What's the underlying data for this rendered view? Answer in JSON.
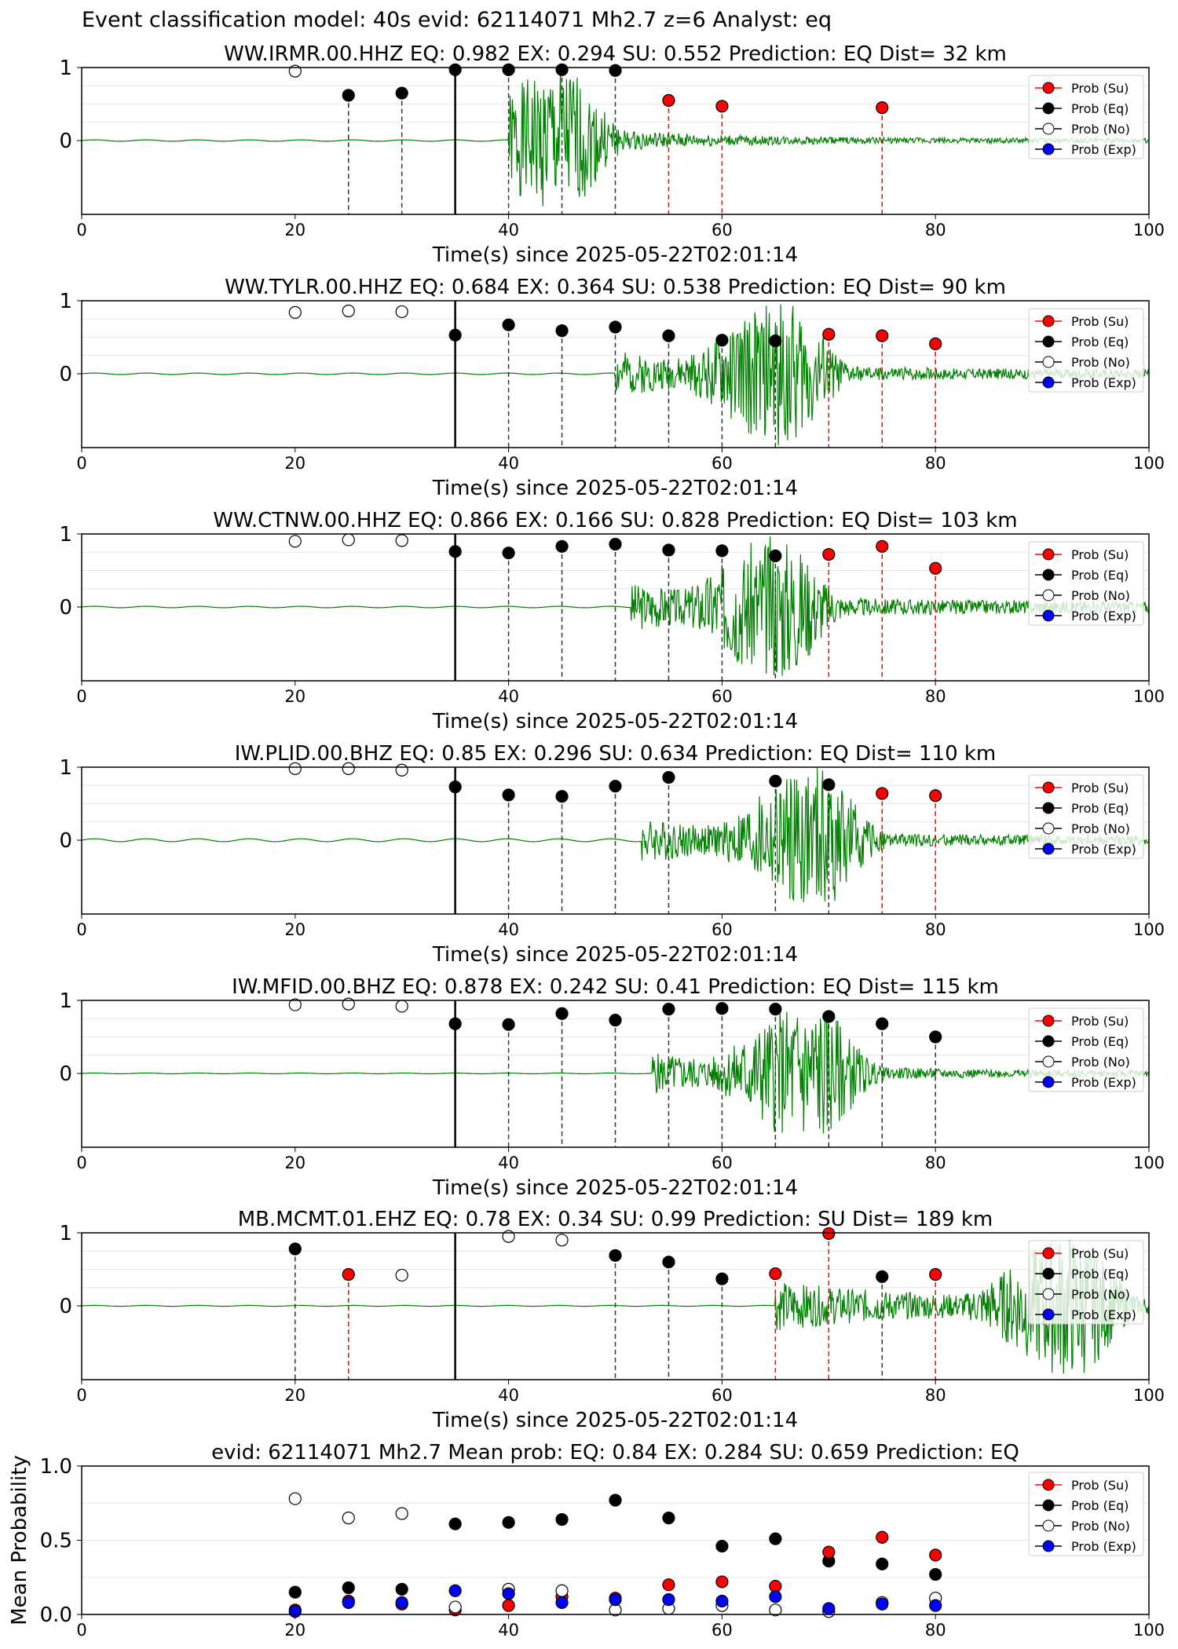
{
  "title": "Event classification model: 40s evid: 62114071 Mh2.7 z=6 Analyst: eq",
  "legend": {
    "position": "top-right",
    "entries": [
      {
        "label": "Prob (Su)",
        "color": "#ff0000",
        "fill": "red"
      },
      {
        "label": "Prob (Eq)",
        "color": "#000000",
        "fill": "black"
      },
      {
        "label": "Prob (No)",
        "color": "#000000",
        "fill": "none"
      },
      {
        "label": "Prob (Exp)",
        "color": "#000000",
        "fill": "blue"
      }
    ]
  },
  "chart_data": [
    {
      "type": "scatter",
      "title": "WW.IRMR.00.HHZ   EQ: 0.982  EX: 0.294  SU: 0.552   Prediction: EQ    Dist= 32 km",
      "xlabel": "Time(s) since 2025-05-22T02:01:14",
      "xlim": [
        0,
        100
      ],
      "ylim": [
        -1,
        1
      ],
      "xticks": [
        "0",
        "20",
        "40",
        "60",
        "80",
        "100"
      ],
      "yticks": [
        "0",
        "1"
      ],
      "origin_line_x": 35,
      "wave": {
        "onset": 40,
        "peak": 45,
        "end_amp": 0.03,
        "pre_amp": 0.01,
        "peak_amp": 1.0,
        "seed": 1
      },
      "points": [
        {
          "x": 20,
          "y": 0.95,
          "cls": "no"
        },
        {
          "x": 25,
          "y": 0.62,
          "cls": "eq",
          "line": "black"
        },
        {
          "x": 30,
          "y": 0.65,
          "cls": "eq",
          "line": "black"
        },
        {
          "x": 35,
          "y": 0.97,
          "cls": "eq"
        },
        {
          "x": 40,
          "y": 0.97,
          "cls": "eq",
          "line": "black"
        },
        {
          "x": 45,
          "y": 0.97,
          "cls": "eq",
          "line": "black"
        },
        {
          "x": 50,
          "y": 0.96,
          "cls": "eq",
          "line": "black"
        },
        {
          "x": 55,
          "y": 0.55,
          "cls": "su",
          "line": "red"
        },
        {
          "x": 60,
          "y": 0.47,
          "cls": "su",
          "line": "red"
        },
        {
          "x": 75,
          "y": 0.45,
          "cls": "su",
          "line": "red"
        }
      ]
    },
    {
      "type": "scatter",
      "title": "WW.TYLR.00.HHZ   EQ: 0.684  EX: 0.364  SU: 0.538   Prediction: EQ    Dist= 90 km",
      "xlabel": "Time(s) since 2025-05-22T02:01:14",
      "xlim": [
        0,
        100
      ],
      "ylim": [
        -1,
        1
      ],
      "xticks": [
        "0",
        "20",
        "40",
        "60",
        "80",
        "100"
      ],
      "yticks": [
        "0",
        "1"
      ],
      "origin_line_x": 35,
      "wave": {
        "onset": 50,
        "peak": 66,
        "end_amp": 0.06,
        "pre_amp": 0.01,
        "peak_amp": 1.0,
        "seed": 2
      },
      "points": [
        {
          "x": 20,
          "y": 0.84,
          "cls": "no"
        },
        {
          "x": 25,
          "y": 0.86,
          "cls": "no"
        },
        {
          "x": 30,
          "y": 0.85,
          "cls": "no"
        },
        {
          "x": 35,
          "y": 0.53,
          "cls": "eq"
        },
        {
          "x": 40,
          "y": 0.67,
          "cls": "eq",
          "line": "black"
        },
        {
          "x": 45,
          "y": 0.59,
          "cls": "eq",
          "line": "black"
        },
        {
          "x": 50,
          "y": 0.64,
          "cls": "eq",
          "line": "black"
        },
        {
          "x": 55,
          "y": 0.52,
          "cls": "eq",
          "line": "black"
        },
        {
          "x": 60,
          "y": 0.46,
          "cls": "eq",
          "line": "black"
        },
        {
          "x": 65,
          "y": 0.45,
          "cls": "eq",
          "line": "black"
        },
        {
          "x": 70,
          "y": 0.54,
          "cls": "su",
          "line": "red"
        },
        {
          "x": 75,
          "y": 0.52,
          "cls": "su",
          "line": "red"
        },
        {
          "x": 80,
          "y": 0.41,
          "cls": "su",
          "line": "red"
        }
      ]
    },
    {
      "type": "scatter",
      "title": "WW.CTNW.00.HHZ   EQ: 0.866  EX: 0.166  SU: 0.828   Prediction: EQ    Dist= 103 km",
      "xlabel": "Time(s) since 2025-05-22T02:01:14",
      "xlim": [
        0,
        100
      ],
      "ylim": [
        -1,
        1
      ],
      "xticks": [
        "0",
        "20",
        "40",
        "60",
        "80",
        "100"
      ],
      "yticks": [
        "0",
        "1"
      ],
      "origin_line_x": 35,
      "wave": {
        "onset": 51.5,
        "peak": 65.5,
        "end_amp": 0.08,
        "pre_amp": 0.01,
        "peak_amp": 1.0,
        "seed": 3
      },
      "points": [
        {
          "x": 20,
          "y": 0.9,
          "cls": "no"
        },
        {
          "x": 25,
          "y": 0.92,
          "cls": "no"
        },
        {
          "x": 30,
          "y": 0.91,
          "cls": "no"
        },
        {
          "x": 35,
          "y": 0.76,
          "cls": "eq"
        },
        {
          "x": 40,
          "y": 0.74,
          "cls": "eq",
          "line": "black"
        },
        {
          "x": 45,
          "y": 0.83,
          "cls": "eq",
          "line": "black"
        },
        {
          "x": 50,
          "y": 0.86,
          "cls": "eq",
          "line": "black"
        },
        {
          "x": 55,
          "y": 0.78,
          "cls": "eq",
          "line": "black"
        },
        {
          "x": 60,
          "y": 0.77,
          "cls": "eq",
          "line": "black"
        },
        {
          "x": 65,
          "y": 0.7,
          "cls": "eq",
          "line": "black"
        },
        {
          "x": 70,
          "y": 0.72,
          "cls": "su",
          "line": "red"
        },
        {
          "x": 75,
          "y": 0.83,
          "cls": "su",
          "line": "red"
        },
        {
          "x": 80,
          "y": 0.53,
          "cls": "su",
          "line": "red"
        }
      ]
    },
    {
      "type": "scatter",
      "title": "IW.PLID.00.BHZ   EQ: 0.85  EX: 0.296  SU: 0.634   Prediction: EQ    Dist= 110 km",
      "xlabel": "Time(s) since 2025-05-22T02:01:14",
      "xlim": [
        0,
        100
      ],
      "ylim": [
        -1,
        1
      ],
      "xticks": [
        "0",
        "20",
        "40",
        "60",
        "80",
        "100"
      ],
      "yticks": [
        "0",
        "1"
      ],
      "origin_line_x": 35,
      "wave": {
        "onset": 52.5,
        "peak": 69,
        "end_amp": 0.06,
        "pre_amp": 0.02,
        "peak_amp": 1.0,
        "seed": 4
      },
      "points": [
        {
          "x": 20,
          "y": 0.98,
          "cls": "no"
        },
        {
          "x": 25,
          "y": 0.98,
          "cls": "no"
        },
        {
          "x": 30,
          "y": 0.96,
          "cls": "no"
        },
        {
          "x": 35,
          "y": 0.73,
          "cls": "eq"
        },
        {
          "x": 40,
          "y": 0.62,
          "cls": "eq",
          "line": "black"
        },
        {
          "x": 45,
          "y": 0.6,
          "cls": "eq",
          "line": "black"
        },
        {
          "x": 50,
          "y": 0.74,
          "cls": "eq",
          "line": "black"
        },
        {
          "x": 55,
          "y": 0.86,
          "cls": "eq",
          "line": "black"
        },
        {
          "x": 65,
          "y": 0.81,
          "cls": "eq",
          "line": "black"
        },
        {
          "x": 70,
          "y": 0.76,
          "cls": "eq",
          "line": "black"
        },
        {
          "x": 75,
          "y": 0.64,
          "cls": "su",
          "line": "red"
        },
        {
          "x": 80,
          "y": 0.61,
          "cls": "su",
          "line": "red"
        }
      ]
    },
    {
      "type": "scatter",
      "title": "IW.MFID.00.BHZ   EQ: 0.878  EX: 0.242  SU: 0.41   Prediction: EQ    Dist= 115 km",
      "xlabel": "Time(s) since 2025-05-22T02:01:14",
      "xlim": [
        0,
        100
      ],
      "ylim": [
        -1,
        1
      ],
      "xticks": [
        "0",
        "20",
        "40",
        "60",
        "80",
        "100"
      ],
      "yticks": [
        "0",
        "1"
      ],
      "origin_line_x": 35,
      "wave": {
        "onset": 53.5,
        "peak": 68.5,
        "end_amp": 0.04,
        "pre_amp": 0.005,
        "peak_amp": 1.0,
        "seed": 5
      },
      "points": [
        {
          "x": 20,
          "y": 0.94,
          "cls": "no"
        },
        {
          "x": 25,
          "y": 0.95,
          "cls": "no"
        },
        {
          "x": 30,
          "y": 0.92,
          "cls": "no"
        },
        {
          "x": 35,
          "y": 0.68,
          "cls": "eq"
        },
        {
          "x": 40,
          "y": 0.67,
          "cls": "eq",
          "line": "black"
        },
        {
          "x": 45,
          "y": 0.82,
          "cls": "eq",
          "line": "black"
        },
        {
          "x": 50,
          "y": 0.73,
          "cls": "eq",
          "line": "black"
        },
        {
          "x": 55,
          "y": 0.88,
          "cls": "eq",
          "line": "black"
        },
        {
          "x": 60,
          "y": 0.89,
          "cls": "eq",
          "line": "black"
        },
        {
          "x": 65,
          "y": 0.88,
          "cls": "eq",
          "line": "black"
        },
        {
          "x": 70,
          "y": 0.78,
          "cls": "eq",
          "line": "black"
        },
        {
          "x": 75,
          "y": 0.68,
          "cls": "eq",
          "line": "black"
        },
        {
          "x": 80,
          "y": 0.5,
          "cls": "eq",
          "line": "black"
        }
      ]
    },
    {
      "type": "scatter",
      "title": "MB.MCMT.01.EHZ   EQ: 0.78  EX: 0.34  SU: 0.99   Prediction: SU    Dist= 189 km",
      "xlabel": "Time(s) since 2025-05-22T02:01:14",
      "xlim": [
        0,
        100
      ],
      "ylim": [
        -1,
        1
      ],
      "xticks": [
        "0",
        "20",
        "40",
        "60",
        "80",
        "100"
      ],
      "yticks": [
        "0",
        "1"
      ],
      "origin_line_x": 35,
      "wave": {
        "onset": 65,
        "peak": 93,
        "end_amp": 0.1,
        "pre_amp": 0.006,
        "peak_amp": 1.0,
        "seed": 6
      },
      "points": [
        {
          "x": 20,
          "y": 0.78,
          "cls": "eq",
          "line": "black"
        },
        {
          "x": 25,
          "y": 0.43,
          "cls": "su",
          "line": "red"
        },
        {
          "x": 30,
          "y": 0.42,
          "cls": "no"
        },
        {
          "x": 40,
          "y": 0.95,
          "cls": "no"
        },
        {
          "x": 45,
          "y": 0.9,
          "cls": "no"
        },
        {
          "x": 50,
          "y": 0.69,
          "cls": "eq",
          "line": "black"
        },
        {
          "x": 55,
          "y": 0.6,
          "cls": "eq",
          "line": "black"
        },
        {
          "x": 60,
          "y": 0.37,
          "cls": "eq",
          "line": "black"
        },
        {
          "x": 65,
          "y": 0.44,
          "cls": "su",
          "line": "red"
        },
        {
          "x": 70,
          "y": 0.99,
          "cls": "su",
          "line": "red"
        },
        {
          "x": 75,
          "y": 0.4,
          "cls": "eq",
          "line": "black"
        },
        {
          "x": 80,
          "y": 0.43,
          "cls": "su",
          "line": "red"
        }
      ]
    },
    {
      "type": "scatter",
      "title": "evid: 62114071  Mh2.7   Mean prob:   EQ: 0.84  EX: 0.284  SU: 0.659   Prediction: EQ",
      "xlabel": "",
      "ylabel": "Mean Probability",
      "xlim": [
        0,
        100
      ],
      "ylim": [
        0,
        1
      ],
      "xticks": [
        "0",
        "20",
        "40",
        "60",
        "80",
        "100"
      ],
      "yticks": [
        "0.0",
        "0.5",
        "1.0"
      ],
      "series": [
        {
          "name": "Prob (Eq)",
          "cls": "eq",
          "x": [
            20,
            25,
            30,
            35,
            40,
            45,
            50,
            55,
            60,
            65,
            70,
            75,
            80
          ],
          "y": [
            0.15,
            0.18,
            0.17,
            0.61,
            0.62,
            0.64,
            0.77,
            0.65,
            0.46,
            0.51,
            0.36,
            0.34,
            0.27
          ]
        },
        {
          "name": "Prob (Su)",
          "cls": "su",
          "x": [
            20,
            25,
            30,
            35,
            40,
            45,
            50,
            55,
            60,
            65,
            70,
            75,
            80
          ],
          "y": [
            0.03,
            0.09,
            0.07,
            0.03,
            0.06,
            0.12,
            0.11,
            0.2,
            0.22,
            0.19,
            0.42,
            0.52,
            0.4
          ]
        },
        {
          "name": "Prob (No)",
          "cls": "no",
          "x": [
            20,
            25,
            30,
            35,
            40,
            45,
            50,
            55,
            60,
            65,
            70,
            75,
            80
          ],
          "y": [
            0.78,
            0.65,
            0.68,
            0.05,
            0.17,
            0.16,
            0.03,
            0.04,
            0.06,
            0.03,
            0.02,
            0.08,
            0.11
          ]
        },
        {
          "name": "Prob (Exp)",
          "cls": "exp",
          "x": [
            20,
            25,
            30,
            35,
            40,
            45,
            50,
            55,
            60,
            65,
            70,
            75,
            80
          ],
          "y": [
            0.02,
            0.08,
            0.08,
            0.16,
            0.14,
            0.08,
            0.1,
            0.1,
            0.09,
            0.12,
            0.04,
            0.07,
            0.06
          ]
        }
      ]
    }
  ]
}
